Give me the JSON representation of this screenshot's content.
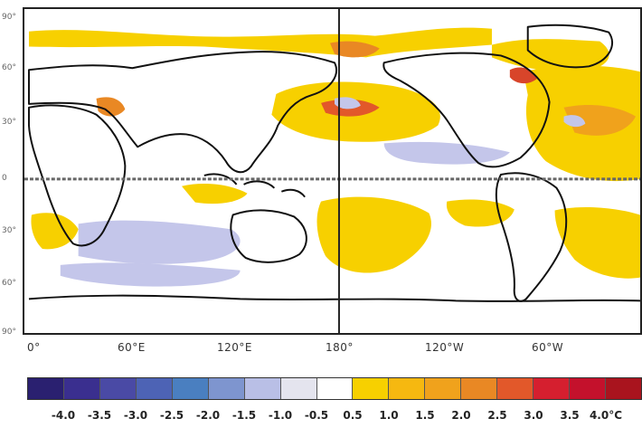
{
  "latitude_labels": [
    "90°",
    "60°",
    "30°",
    "0",
    "30°",
    "60°",
    "90°"
  ],
  "longitude_labels": [
    "0°",
    "60°E",
    "120°E",
    "180°",
    "120°W",
    "60°W"
  ],
  "colorbar": {
    "ticks": [
      "-4.0",
      "-3.5",
      "-3.0",
      "-2.5",
      "-2.0",
      "-1.5",
      "-1.0",
      "-0.5",
      "0.5",
      "1.0",
      "1.5",
      "2.0",
      "2.5",
      "3.0",
      "3.5",
      "4.0°C"
    ],
    "colors": [
      "#2a2070",
      "#3a2f8f",
      "#4a4aa5",
      "#4d63b5",
      "#4a7fc0",
      "#7e95cf",
      "#b9bfe6",
      "#e4e4ee",
      "#ffffff",
      "#f7d000",
      "#f6b810",
      "#f0a21c",
      "#e98824",
      "#e2582a",
      "#d51f2f",
      "#c4112c",
      "#a9141e"
    ]
  },
  "colors": {
    "positive_weak": "#f7d000",
    "positive_mid": "#f0a21c",
    "positive_strong": "#d8452a",
    "negative_weak": "#c4c6ea",
    "land_outline": "#111111"
  }
}
